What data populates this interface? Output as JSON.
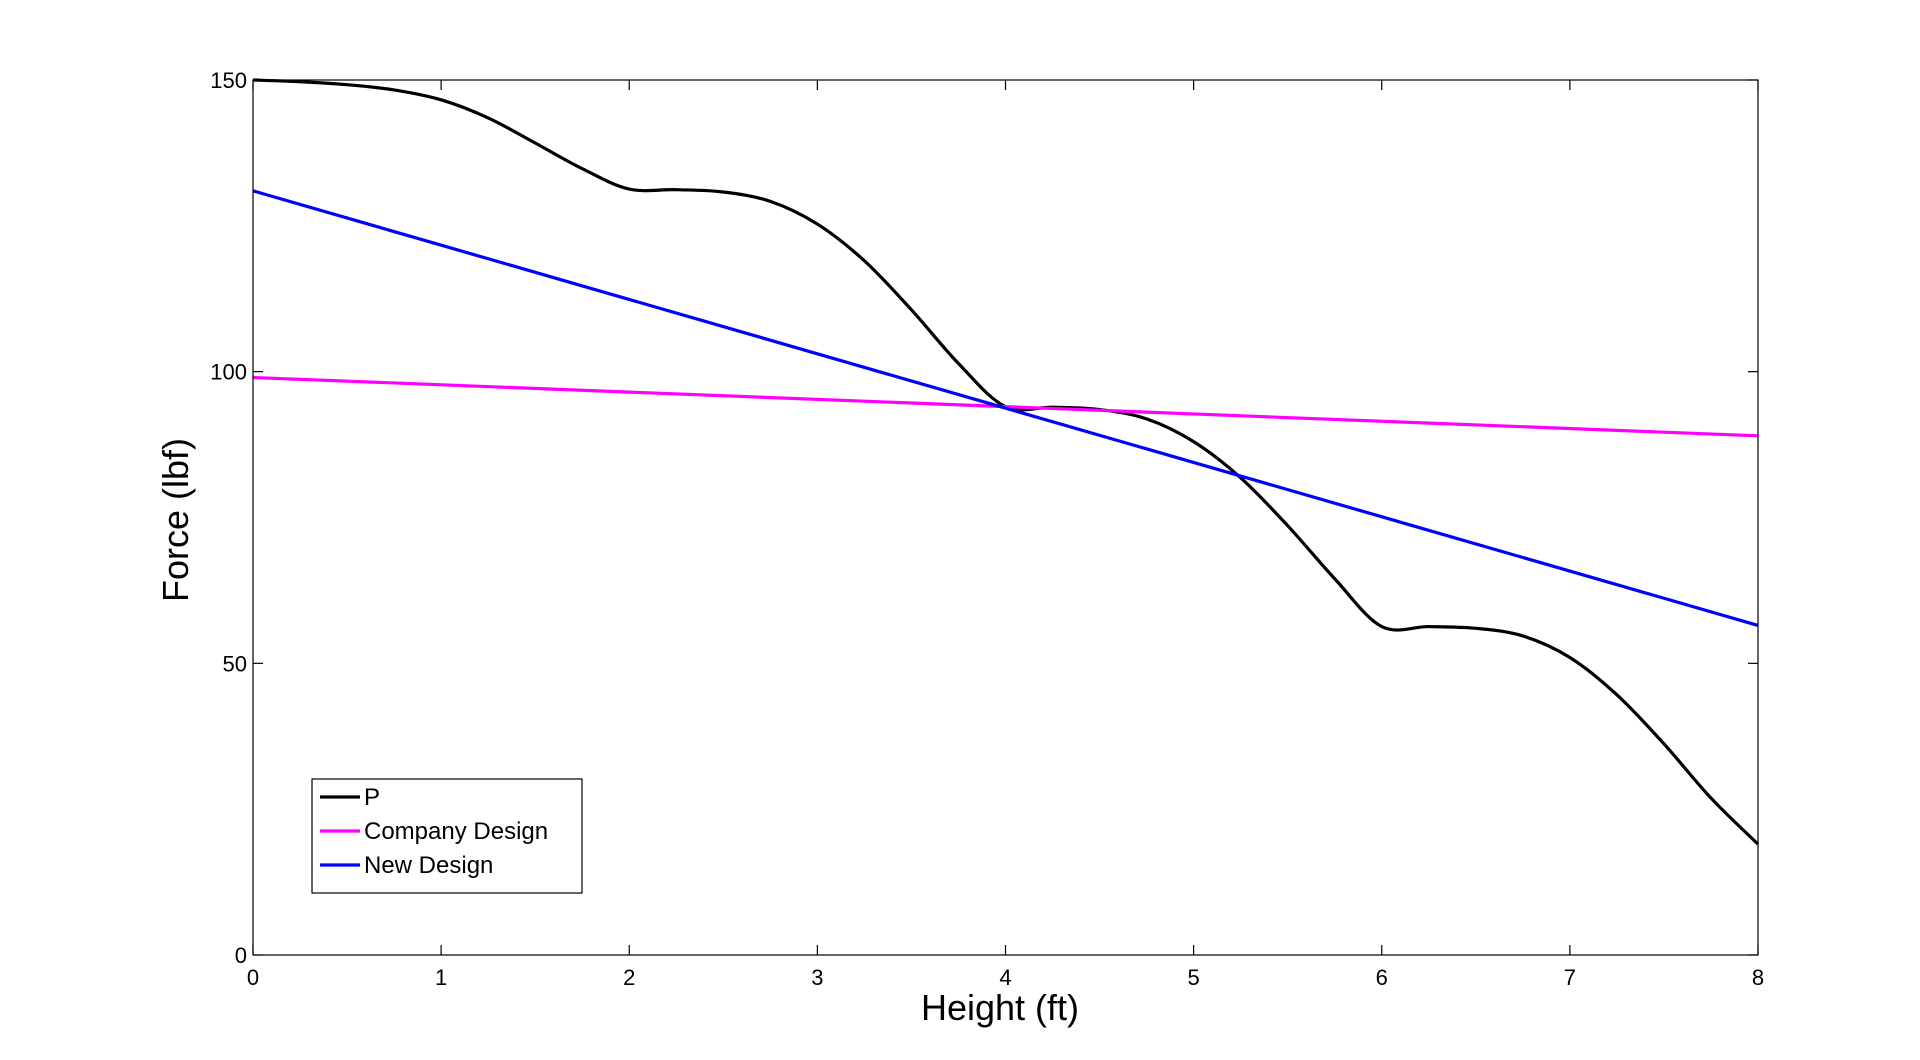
{
  "chart_data": {
    "type": "line",
    "title": "",
    "xlabel": "Height (ft)",
    "ylabel": "Force (lbf)",
    "xlim": [
      0,
      8
    ],
    "ylim": [
      0,
      150
    ],
    "xticks": [
      0,
      1,
      2,
      3,
      4,
      5,
      6,
      7,
      8
    ],
    "yticks": [
      0,
      50,
      100,
      150
    ],
    "grid": false,
    "legend_position": "bottom-left",
    "series": [
      {
        "name": "P",
        "color": "#000000",
        "x": [
          0,
          0.25,
          0.5,
          0.75,
          1.0,
          1.25,
          1.5,
          1.75,
          2.0,
          2.25,
          2.5,
          2.75,
          3.0,
          3.25,
          3.5,
          3.75,
          4.0,
          4.25,
          4.5,
          4.75,
          5.0,
          5.25,
          5.5,
          5.75,
          6.0,
          6.25,
          6.5,
          6.75,
          7.0,
          7.25,
          7.5,
          7.75,
          8.0
        ],
        "y": [
          150,
          149.7,
          149.2,
          148.3,
          146.6,
          143.5,
          139.2,
          134.8,
          131.3,
          131.2,
          130.8,
          129.2,
          125.3,
          119.0,
          110.6,
          101.4,
          94.0,
          93.9,
          93.5,
          91.9,
          88.0,
          81.8,
          73.6,
          64.5,
          56.3,
          56.3,
          56.0,
          54.7,
          51.0,
          44.6,
          36.2,
          26.9,
          19.0
        ]
      },
      {
        "name": "Company Design",
        "color": "#ff00ff",
        "x": [
          0,
          8
        ],
        "y": [
          99.0,
          89.0
        ]
      },
      {
        "name": "New Design",
        "color": "#0000ff",
        "x": [
          0,
          8
        ],
        "y": [
          131.0,
          56.5
        ]
      }
    ]
  }
}
